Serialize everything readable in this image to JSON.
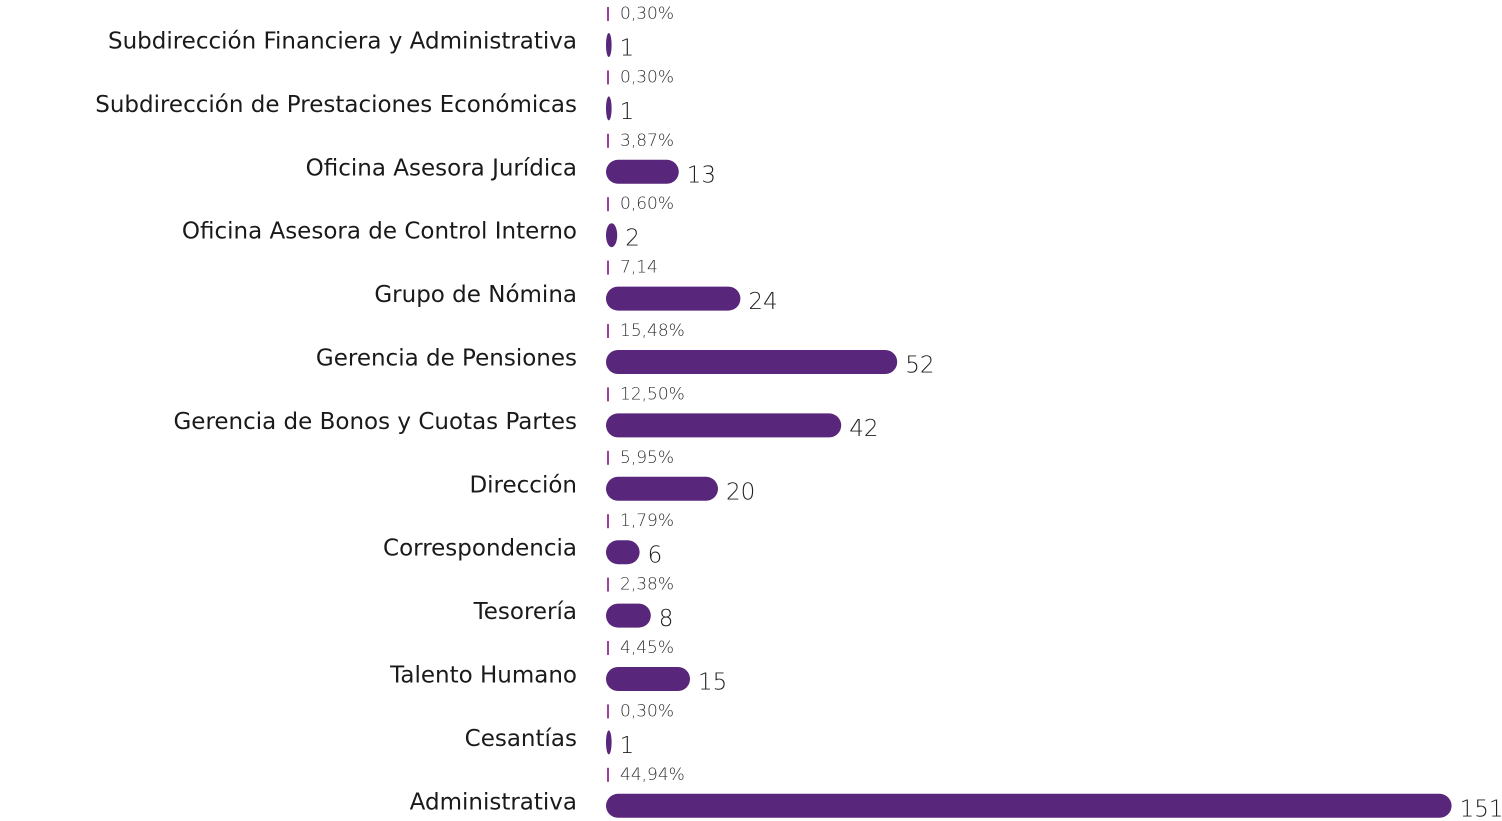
{
  "chart_data": {
    "type": "hbar",
    "categories": [
      "Subdirección Financiera y Administrativa",
      "Subdirección de Prestaciones Económicas",
      "Oficina Asesora Jurídica",
      "Oficina Asesora de Control Interno",
      "Grupo de Nómina",
      "Gerencia de Pensiones",
      "Gerencia de Bonos y Cuotas Partes",
      "Dirección",
      "Correspondencia",
      "Tesorería",
      "Talento Humano",
      "Cesantías",
      "Administrativa"
    ],
    "values": [
      1,
      1,
      13,
      2,
      24,
      52,
      42,
      20,
      6,
      8,
      15,
      1,
      151
    ],
    "percentages": [
      0.3,
      0.3,
      3.87,
      0.6,
      7.14,
      15.48,
      12.5,
      5.95,
      1.79,
      2.38,
      4.45,
      0.3,
      44.94
    ],
    "percentage_labels": [
      "0,30%",
      "0,30%",
      "3,87%",
      "0,60%",
      "7,14",
      "15,48%",
      "12,50%",
      "5,95%",
      "1,79%",
      "2,38%",
      "4,45%",
      "0,30%",
      "44,94%"
    ],
    "color": "#58267a"
  }
}
